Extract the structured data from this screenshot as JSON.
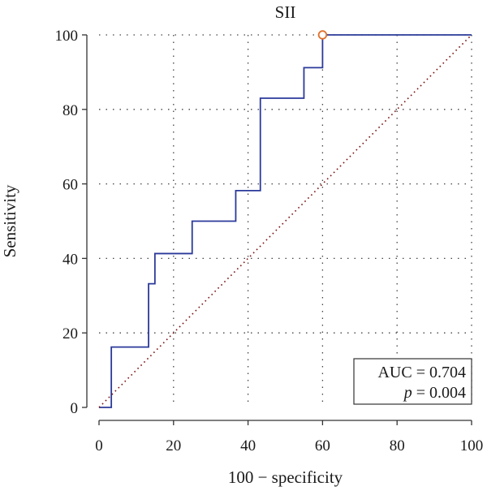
{
  "chart_data": {
    "type": "line",
    "title": "SII",
    "xlabel": "100 − specificity",
    "ylabel": "Sensitivity",
    "xlim": [
      0,
      100
    ],
    "ylim": [
      0,
      100
    ],
    "x_ticks": [
      "0",
      "20",
      "40",
      "60",
      "80",
      "100"
    ],
    "y_ticks": [
      "0",
      "20",
      "40",
      "60",
      "80",
      "100"
    ],
    "grid": true,
    "series": [
      {
        "color": "#2b3a9a",
        "x": [
          0,
          3.3,
          3.3,
          13.3,
          13.3,
          15,
          15,
          25,
          25,
          36.7,
          36.7,
          43.3,
          43.3,
          55,
          55,
          60,
          60,
          100
        ],
        "y": [
          0,
          0,
          16.2,
          16.2,
          33.2,
          33.2,
          41.3,
          41.3,
          50,
          50,
          58.2,
          58.2,
          83,
          83,
          91.2,
          91.2,
          100,
          100
        ]
      },
      {
        "color": "#7a1010",
        "style": "dotted",
        "x": [
          0,
          100
        ],
        "y": [
          0,
          100
        ]
      }
    ],
    "marker": {
      "x": 60,
      "y": 100,
      "color": "#e0702a"
    },
    "annotation": {
      "auc_text": "AUC = 0.704",
      "p_symbol": "p",
      "p_text": " = 0.004"
    }
  }
}
